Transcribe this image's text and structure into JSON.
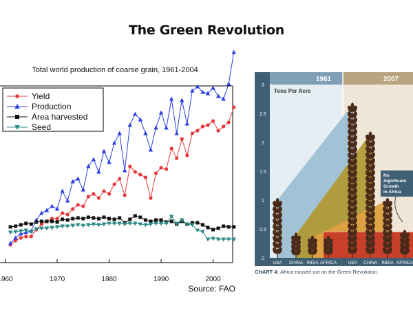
{
  "page": {
    "title": "The Green Revolution"
  },
  "chart_data": [
    {
      "type": "line",
      "title": "Total world production of coarse grain, 1961-2004",
      "source": "Source:  FAO",
      "x_ticks": [
        "1960",
        "1970",
        "1980",
        "1990",
        "2000"
      ],
      "xlim": [
        1959,
        2005
      ],
      "legend_position": "top-left",
      "x": [
        1961,
        1962,
        1963,
        1964,
        1965,
        1966,
        1967,
        1968,
        1969,
        1970,
        1971,
        1972,
        1973,
        1974,
        1975,
        1976,
        1977,
        1978,
        1979,
        1980,
        1981,
        1982,
        1983,
        1984,
        1985,
        1986,
        1987,
        1988,
        1989,
        1990,
        1991,
        1992,
        1993,
        1994,
        1995,
        1996,
        1997,
        1998,
        1999,
        2000,
        2001,
        2002,
        2003,
        2004
      ],
      "series": [
        {
          "name": "Yield",
          "color": "#e8383a",
          "marker": "circle",
          "values": [
            100,
            106,
            110,
            112,
            112,
            122,
            130,
            134,
            138,
            138,
            146,
            144,
            152,
            158,
            156,
            170,
            174,
            168,
            178,
            174,
            188,
            196,
            172,
            214,
            206,
            202,
            198,
            168,
            204,
            212,
            210,
            240,
            226,
            254,
            230,
            262,
            266,
            272,
            274,
            280,
            266,
            272,
            278,
            300
          ]
        },
        {
          "name": "Production",
          "color": "#2a3fe0",
          "marker": "triangle",
          "values": [
            102,
            110,
            116,
            118,
            120,
            136,
            146,
            150,
            156,
            152,
            178,
            164,
            192,
            196,
            180,
            214,
            224,
            206,
            236,
            220,
            248,
            262,
            208,
            274,
            290,
            282,
            262,
            238,
            270,
            292,
            270,
            312,
            262,
            310,
            276,
            324,
            330,
            322,
            320,
            328,
            316,
            312,
            334,
            380
          ]
        },
        {
          "name": "Area harvested",
          "color": "#111111",
          "marker": "square",
          "values": [
            126,
            127,
            129,
            131,
            130,
            133,
            134,
            134,
            134,
            133,
            137,
            136,
            138,
            139,
            138,
            140,
            139,
            138,
            140,
            138,
            137,
            139,
            132,
            137,
            142,
            140,
            136,
            134,
            136,
            136,
            133,
            134,
            130,
            134,
            130,
            132,
            132,
            129,
            125,
            122,
            124,
            127,
            126,
            126
          ]
        },
        {
          "name": "Seed",
          "color": "#2e8b88",
          "marker": "triangle-down",
          "values": [
            118,
            119,
            120,
            121,
            119,
            123,
            124,
            124,
            125,
            126,
            127,
            127,
            128,
            129,
            128,
            129,
            130,
            129,
            130,
            131,
            131,
            131,
            130,
            131,
            131,
            130,
            129,
            130,
            131,
            131,
            131,
            141,
            131,
            136,
            130,
            129,
            121,
            119,
            108,
            109,
            108,
            108,
            108,
            108
          ]
        }
      ]
    },
    {
      "type": "area",
      "heading": "Tons Per Acre",
      "y_ticks": [
        "3",
        "2.5",
        "2",
        "1.5",
        "1",
        "0.5",
        "0"
      ],
      "ylim": [
        0,
        3
      ],
      "periods": [
        "1961",
        "2007"
      ],
      "regions": [
        "USA",
        "CHINA",
        "INDIA",
        "AFRICA"
      ],
      "values_1961": [
        1.0,
        0.4,
        0.35,
        0.35
      ],
      "values_2007": [
        2.65,
        2.15,
        1.0,
        0.45
      ],
      "annotation": [
        "No",
        "Significant",
        "Growth",
        "in Africa"
      ],
      "caption_label": "CHART 4:",
      "caption_text": "Africa missed out on the Green Revolution.",
      "colors": {
        "usa": "#9ec0d4",
        "china": "#b19a37",
        "india": "#dfa141",
        "africa": "#c8402a",
        "header_1961": "#7f9fb6",
        "header_2007": "#b8a47e",
        "bg_1961": "#e5eef2",
        "bg_2007": "#efe6d7",
        "axis": "#3e5f74"
      }
    }
  ]
}
